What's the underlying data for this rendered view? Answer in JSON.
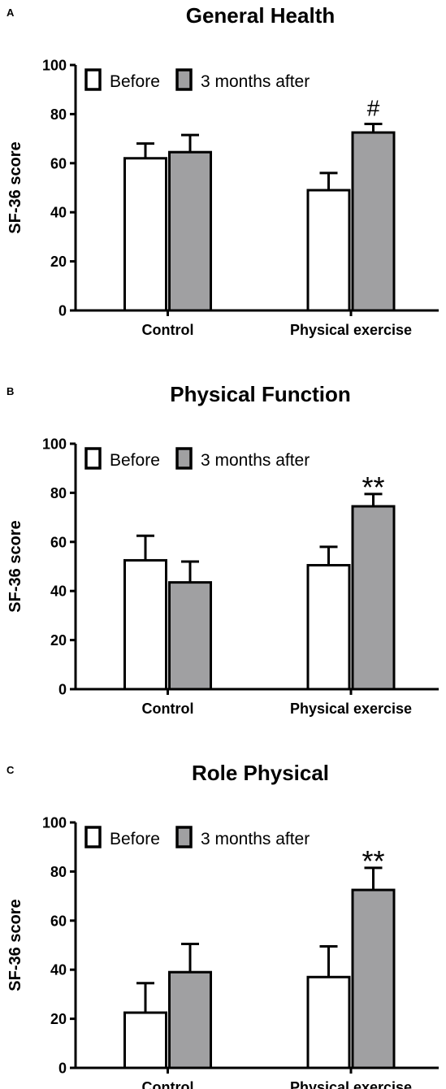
{
  "colors": {
    "before_fill": "#ffffff",
    "after_fill": "#a0a0a2",
    "stroke": "#000000"
  },
  "chart_data": [
    {
      "type": "bar",
      "panel_label": "A",
      "title": "General Health",
      "ylabel": "SF-36 score",
      "xlabel": "",
      "ylim": [
        0,
        100
      ],
      "yticks": [
        0,
        20,
        40,
        60,
        80,
        100
      ],
      "categories": [
        "Control",
        "Physical exercise"
      ],
      "series": [
        {
          "name": "Before",
          "values": [
            62,
            49
          ],
          "errors": [
            6,
            7
          ]
        },
        {
          "name": "3 months after",
          "values": [
            64.5,
            72.5
          ],
          "errors": [
            7,
            3.5
          ]
        }
      ],
      "annotations": [
        {
          "text": "#",
          "category": "Physical exercise",
          "series": "3 months after"
        }
      ],
      "legend": "top-left",
      "grid": false
    },
    {
      "type": "bar",
      "panel_label": "B",
      "title": "Physical Function",
      "ylabel": "SF-36 score",
      "xlabel": "",
      "ylim": [
        0,
        100
      ],
      "yticks": [
        0,
        20,
        40,
        60,
        80,
        100
      ],
      "categories": [
        "Control",
        "Physical exercise"
      ],
      "series": [
        {
          "name": "Before",
          "values": [
            52.5,
            50.5
          ],
          "errors": [
            10,
            7.5
          ]
        },
        {
          "name": "3 months after",
          "values": [
            43.5,
            74.5
          ],
          "errors": [
            8.5,
            5
          ]
        }
      ],
      "annotations": [
        {
          "text": "**",
          "category": "Physical exercise",
          "series": "3 months after"
        }
      ],
      "legend": "top-left",
      "grid": false
    },
    {
      "type": "bar",
      "panel_label": "C",
      "title": "Role Physical",
      "ylabel": "SF-36 score",
      "xlabel": "",
      "ylim": [
        0,
        100
      ],
      "yticks": [
        0,
        20,
        40,
        60,
        80,
        100
      ],
      "categories": [
        "Control",
        "Physical exercise"
      ],
      "series": [
        {
          "name": "Before",
          "values": [
            22.5,
            37
          ],
          "errors": [
            12,
            12.5
          ]
        },
        {
          "name": "3 months after",
          "values": [
            39,
            72.5
          ],
          "errors": [
            11.5,
            9
          ]
        }
      ],
      "annotations": [
        {
          "text": "**",
          "category": "Physical exercise",
          "series": "3 months after"
        }
      ],
      "legend": "top-left",
      "grid": false
    }
  ]
}
